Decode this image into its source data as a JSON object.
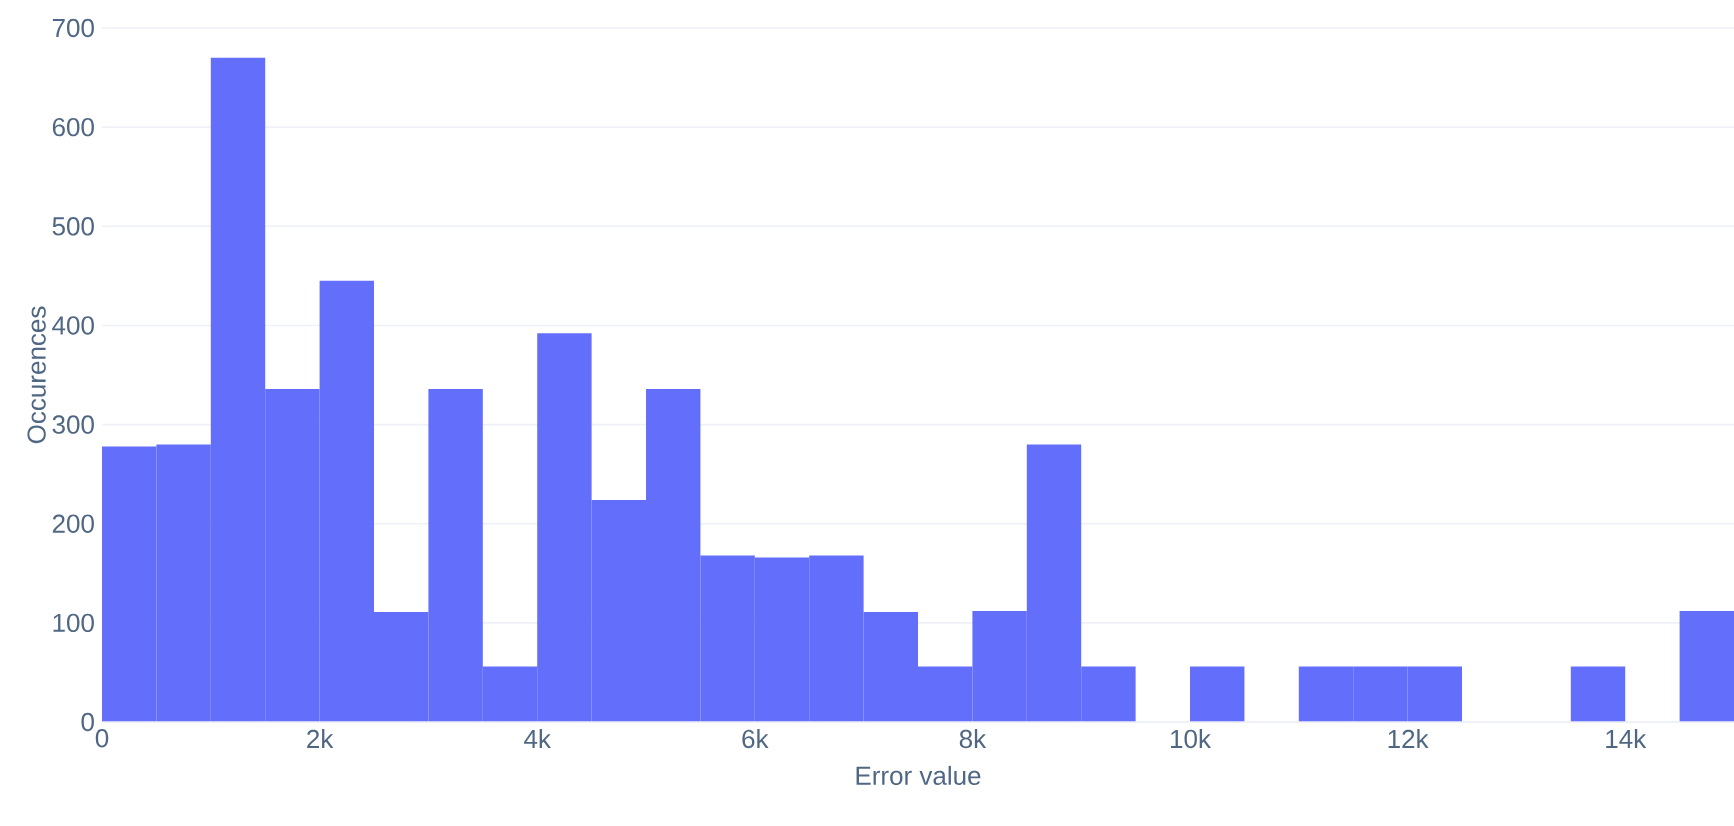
{
  "chart_data": {
    "type": "histogram",
    "xlabel": "Error value",
    "ylabel": "Occurences",
    "color": "#636efa",
    "bins": [
      0,
      500,
      1000,
      1500,
      2000,
      2500,
      3000,
      3500,
      4000,
      4500,
      5000,
      5500,
      6000,
      6500,
      7000,
      7500,
      8000,
      8500,
      9000,
      9500,
      10000,
      10500,
      11000,
      11500,
      12000,
      12500,
      13000,
      13500,
      14000,
      14500,
      15000
    ],
    "values": [
      278,
      280,
      670,
      336,
      445,
      111,
      336,
      56,
      392,
      224,
      336,
      168,
      166,
      168,
      111,
      56,
      112,
      280,
      56,
      0,
      56,
      0,
      56,
      56,
      56,
      0,
      0,
      56,
      0,
      112
    ],
    "xlim": [
      0,
      15000
    ],
    "ylim": [
      0,
      700
    ],
    "xticks": [
      0,
      {
        "value": 2000,
        "label": "2k"
      },
      {
        "value": 4000,
        "label": "4k"
      },
      {
        "value": 6000,
        "label": "6k"
      },
      {
        "value": 8000,
        "label": "8k"
      },
      {
        "value": 10000,
        "label": "10k"
      },
      {
        "value": 12000,
        "label": "12k"
      },
      {
        "value": 14000,
        "label": "14k"
      }
    ],
    "yticks": [
      0,
      100,
      200,
      300,
      400,
      500,
      600,
      700
    ],
    "grid": "y"
  }
}
